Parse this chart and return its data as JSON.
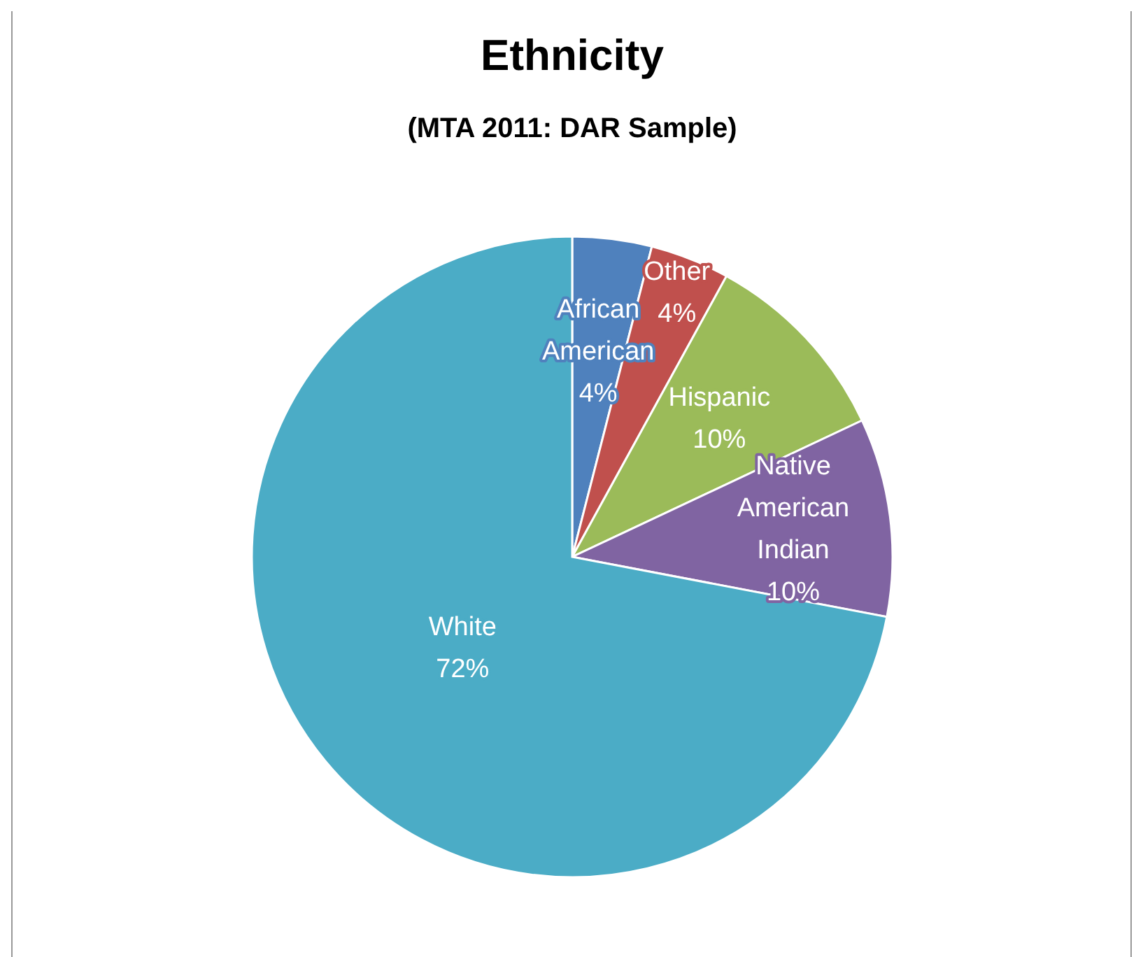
{
  "chart_data": {
    "type": "pie",
    "title": "Ethnicity",
    "subtitle": "(MTA 2011: DAR Sample)",
    "categories": [
      "African American",
      "Other",
      "Hispanic",
      "Native American Indian",
      "White"
    ],
    "values": [
      4,
      4,
      10,
      10,
      72
    ],
    "colors": [
      "#4f81bd",
      "#c0504d",
      "#9bbb59",
      "#8064a2",
      "#4bacc6"
    ],
    "value_labels": [
      "4%",
      "4%",
      "10%",
      "10%",
      "72%"
    ]
  }
}
